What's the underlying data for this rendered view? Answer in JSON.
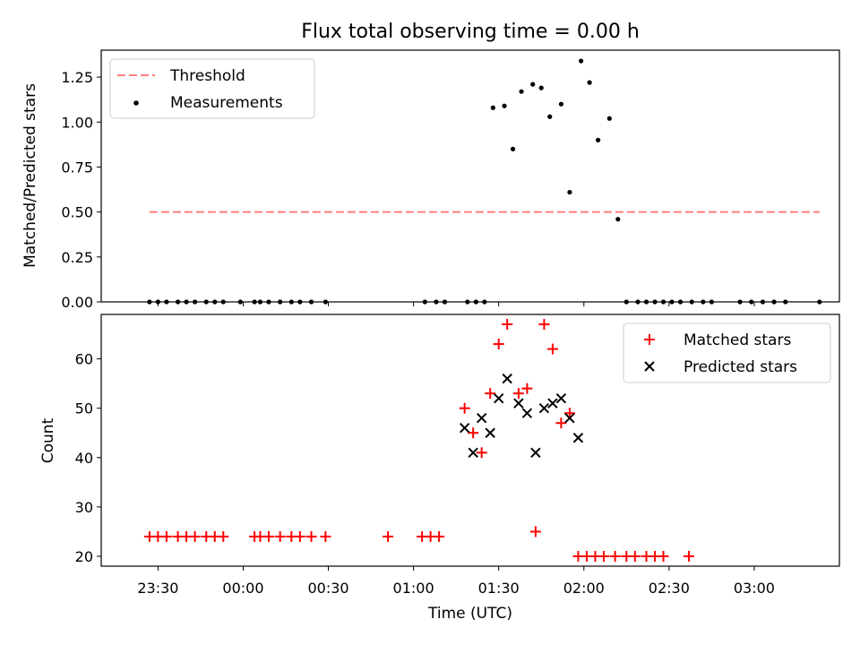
{
  "chart_data": [
    {
      "type": "scatter",
      "title": "Flux total observing time = 0.00 h",
      "xlabel": "",
      "ylabel": "Matched/Predicted stars",
      "xlim": [
        "23:10",
        "03:30"
      ],
      "ylim": [
        0.0,
        1.4
      ],
      "yticks": [
        0.0,
        0.25,
        0.5,
        0.75,
        1.0,
        1.25
      ],
      "ytick_labels": [
        "0.00",
        "0.25",
        "0.50",
        "0.75",
        "1.00",
        "1.25"
      ],
      "legend_position": "top-left",
      "series": [
        {
          "name": "Threshold",
          "kind": "dashed-line",
          "color": "#ff7f7f",
          "x": [
            "23:27",
            "03:23"
          ],
          "y": [
            0.5,
            0.5
          ]
        },
        {
          "name": "Measurements",
          "kind": "dot",
          "color": "#000000",
          "x": [
            "23:27",
            "23:30",
            "23:33",
            "23:37",
            "23:40",
            "23:43",
            "23:47",
            "23:50",
            "23:53",
            "23:59",
            "00:04",
            "00:06",
            "00:09",
            "00:13",
            "00:17",
            "00:20",
            "00:24",
            "00:29",
            "01:04",
            "01:08",
            "01:11",
            "01:19",
            "01:22",
            "01:25",
            "01:28",
            "01:32",
            "01:35",
            "01:38",
            "01:42",
            "01:45",
            "01:48",
            "01:52",
            "01:55",
            "01:59",
            "02:02",
            "02:05",
            "02:09",
            "02:12",
            "02:15",
            "02:19",
            "02:22",
            "02:25",
            "02:28",
            "02:31",
            "02:34",
            "02:38",
            "02:42",
            "02:45",
            "02:55",
            "02:59",
            "03:03",
            "03:07",
            "03:11",
            "03:23"
          ],
          "y": [
            0,
            0,
            0,
            0,
            0,
            0,
            0,
            0,
            0,
            0,
            0,
            0,
            0,
            0,
            0,
            0,
            0,
            0,
            0,
            0,
            0,
            0,
            0,
            0,
            1.08,
            1.09,
            0.85,
            1.17,
            1.21,
            1.19,
            1.03,
            1.1,
            0.61,
            1.34,
            1.22,
            0.9,
            1.02,
            0.46,
            0,
            0,
            0,
            0,
            0,
            0,
            0,
            0,
            0,
            0,
            0,
            0,
            0,
            0,
            0,
            0
          ]
        }
      ]
    },
    {
      "type": "scatter",
      "title": "",
      "xlabel": "Time (UTC)",
      "ylabel": "Count",
      "xlim": [
        "23:10",
        "03:30"
      ],
      "ylim": [
        18,
        69
      ],
      "xtick_labels": [
        "23:30",
        "00:00",
        "00:30",
        "01:00",
        "01:30",
        "02:00",
        "02:30",
        "03:00"
      ],
      "yticks": [
        20,
        30,
        40,
        50,
        60
      ],
      "ytick_labels": [
        "20",
        "30",
        "40",
        "50",
        "60"
      ],
      "legend_position": "top-right",
      "series": [
        {
          "name": "Matched stars",
          "marker": "+",
          "color": "#ff0000",
          "points": [
            [
              "23:27",
              24
            ],
            [
              "23:30",
              24
            ],
            [
              "23:33",
              24
            ],
            [
              "23:37",
              24
            ],
            [
              "23:40",
              24
            ],
            [
              "23:43",
              24
            ],
            [
              "23:47",
              24
            ],
            [
              "23:50",
              24
            ],
            [
              "23:53",
              24
            ],
            [
              "00:04",
              24
            ],
            [
              "00:06",
              24
            ],
            [
              "00:09",
              24
            ],
            [
              "00:13",
              24
            ],
            [
              "00:17",
              24
            ],
            [
              "00:20",
              24
            ],
            [
              "00:24",
              24
            ],
            [
              "00:29",
              24
            ],
            [
              "00:51",
              24
            ],
            [
              "01:03",
              24
            ],
            [
              "01:06",
              24
            ],
            [
              "01:09",
              24
            ],
            [
              "01:18",
              50
            ],
            [
              "01:21",
              45
            ],
            [
              "01:24",
              41
            ],
            [
              "01:27",
              53
            ],
            [
              "01:30",
              63
            ],
            [
              "01:33",
              67
            ],
            [
              "01:37",
              53
            ],
            [
              "01:40",
              54
            ],
            [
              "01:43",
              25
            ],
            [
              "01:46",
              67
            ],
            [
              "01:49",
              62
            ],
            [
              "01:52",
              47
            ],
            [
              "01:55",
              49
            ],
            [
              "01:58",
              20
            ],
            [
              "02:01",
              20
            ],
            [
              "02:04",
              20
            ],
            [
              "02:07",
              20
            ],
            [
              "02:11",
              20
            ],
            [
              "02:15",
              20
            ],
            [
              "02:18",
              20
            ],
            [
              "02:22",
              20
            ],
            [
              "02:25",
              20
            ],
            [
              "02:28",
              20
            ],
            [
              "02:37",
              20
            ]
          ]
        },
        {
          "name": "Predicted stars",
          "marker": "x",
          "color": "#000000",
          "points": [
            [
              "01:18",
              46
            ],
            [
              "01:21",
              41
            ],
            [
              "01:24",
              48
            ],
            [
              "01:27",
              45
            ],
            [
              "01:30",
              52
            ],
            [
              "01:33",
              56
            ],
            [
              "01:37",
              51
            ],
            [
              "01:40",
              49
            ],
            [
              "01:43",
              41
            ],
            [
              "01:46",
              50
            ],
            [
              "01:49",
              51
            ],
            [
              "01:52",
              52
            ],
            [
              "01:55",
              48
            ],
            [
              "01:58",
              44
            ]
          ]
        }
      ]
    }
  ]
}
